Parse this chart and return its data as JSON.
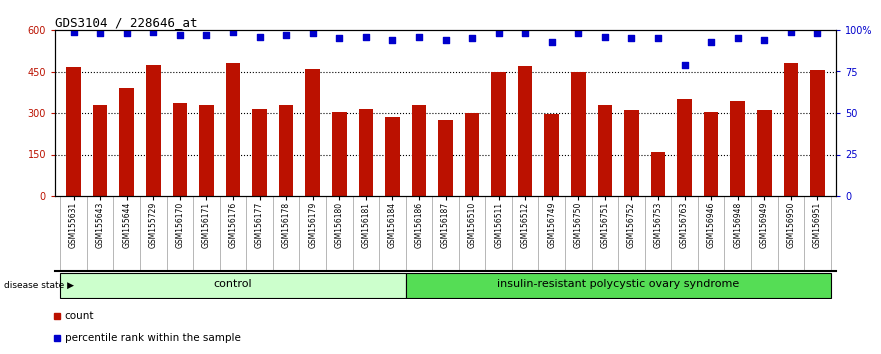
{
  "title": "GDS3104 / 228646_at",
  "samples": [
    "GSM155631",
    "GSM155643",
    "GSM155644",
    "GSM155729",
    "GSM156170",
    "GSM156171",
    "GSM156176",
    "GSM156177",
    "GSM156178",
    "GSM156179",
    "GSM156180",
    "GSM156181",
    "GSM156184",
    "GSM156186",
    "GSM156187",
    "GSM156510",
    "GSM156511",
    "GSM156512",
    "GSM156749",
    "GSM156750",
    "GSM156751",
    "GSM156752",
    "GSM156753",
    "GSM156763",
    "GSM156946",
    "GSM156948",
    "GSM156949",
    "GSM156950",
    "GSM156951"
  ],
  "counts": [
    465,
    330,
    390,
    475,
    335,
    330,
    480,
    315,
    330,
    460,
    305,
    315,
    285,
    330,
    275,
    300,
    450,
    470,
    295,
    450,
    330,
    310,
    160,
    350,
    305,
    345,
    310,
    480,
    455
  ],
  "percentiles": [
    99,
    98,
    98,
    99,
    97,
    97,
    99,
    96,
    97,
    98,
    95,
    96,
    94,
    96,
    94,
    95,
    98,
    98,
    93,
    98,
    96,
    95,
    95,
    79,
    93,
    95,
    94,
    99,
    98
  ],
  "control_count": 13,
  "disease_state_label": "disease state",
  "control_label": "control",
  "disease_label": "insulin-resistant polycystic ovary syndrome",
  "bar_color": "#bb1100",
  "dot_color": "#0000cc",
  "ylim_left": [
    0,
    600
  ],
  "ylim_right": [
    0,
    100
  ],
  "yticks_left": [
    0,
    150,
    300,
    450,
    600
  ],
  "ytick_labels_left": [
    "0",
    "150",
    "300",
    "450",
    "600"
  ],
  "yticks_right": [
    0,
    25,
    50,
    75,
    100
  ],
  "ytick_labels_right": [
    "0",
    "25",
    "50",
    "75",
    "100%"
  ],
  "legend_count_label": "count",
  "legend_pct_label": "percentile rank within the sample",
  "control_bg": "#ccffcc",
  "disease_bg": "#55dd55",
  "gray_bg": "#c8c8c8",
  "title_fontsize": 9,
  "tick_fontsize": 7,
  "sample_fontsize": 5.5
}
